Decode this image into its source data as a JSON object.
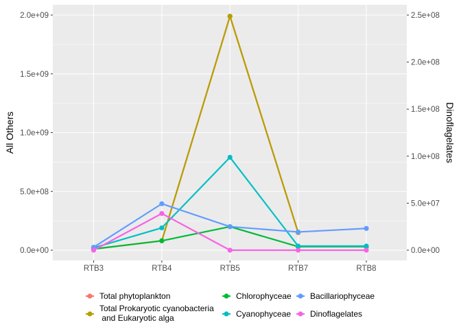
{
  "chart_data": {
    "type": "line",
    "title": "",
    "xlabel": "",
    "ylabel": "All Others",
    "y2label": "Dinoflagelates",
    "categories": [
      "RTB3",
      "RTB4",
      "RTB5",
      "RTB7",
      "RTB8"
    ],
    "ylim": [
      -100000000,
      2000000000
    ],
    "y_ticks": [
      0,
      500000000,
      1000000000,
      1500000000,
      2000000000
    ],
    "y_tick_labels": [
      "0.0e+00",
      "5.0e+08",
      "1.0e+09",
      "1.5e+09",
      "2.0e+09"
    ],
    "y2_ticks": [
      0,
      50000000,
      100000000,
      150000000,
      200000000,
      250000000
    ],
    "y2_tick_labels": [
      "0.0e+00",
      "5.0e+07",
      "1.0e+08",
      "1.5e+08",
      "2.0e+08",
      "2.5e+08"
    ],
    "y2_scale": 8,
    "grid": true,
    "legend_position": "bottom",
    "series": [
      {
        "name": "Total phytoplankton",
        "color": "#F8766D",
        "axis": "left",
        "values": [
          10000000,
          80000000,
          1990000000,
          150000000,
          null
        ]
      },
      {
        "name": "Total Prokaryotic cyanobacteria\n and Eukaryotic alga",
        "color": "#B79F00",
        "axis": "left",
        "values": [
          10000000,
          80000000,
          1990000000,
          150000000,
          null
        ]
      },
      {
        "name": "Chlorophyceae",
        "color": "#00BA38",
        "axis": "left",
        "values": [
          10000000,
          80000000,
          200000000,
          30000000,
          30000000
        ]
      },
      {
        "name": "Cyanophyceae",
        "color": "#00BFC4",
        "axis": "left",
        "values": [
          20000000,
          190000000,
          790000000,
          35000000,
          35000000
        ]
      },
      {
        "name": "Bacillariophyceae",
        "color": "#619CFF",
        "axis": "left",
        "values": [
          25000000,
          395000000,
          200000000,
          155000000,
          185000000
        ]
      },
      {
        "name": "Dinoflagelates",
        "color": "#F564E3",
        "axis": "right",
        "values": [
          0,
          39000000,
          0,
          0,
          0
        ]
      }
    ],
    "legend_layout": [
      [
        0,
        1
      ],
      [
        2,
        3
      ],
      [
        4,
        5
      ]
    ]
  }
}
